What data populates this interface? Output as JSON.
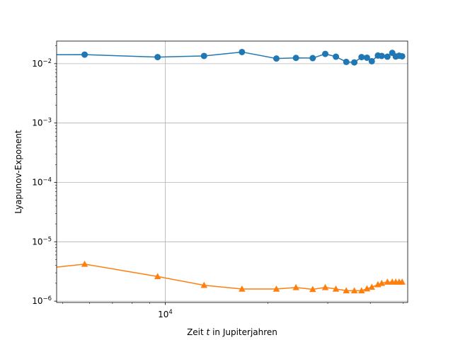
{
  "chart_data": {
    "type": "line",
    "xlabel_prefix": "Zeit ",
    "xlabel_var": "t",
    "xlabel_suffix": " in Jupiterjahren",
    "ylabel": "Lyapunov-Exponent",
    "xscale": "log",
    "yscale": "log",
    "xlim": [
      4800,
      51500
    ],
    "ylim": [
      9.5e-07,
      0.024
    ],
    "grid": true,
    "x_tick_labels": [
      {
        "value": 10000,
        "base": "10",
        "exp": "4"
      }
    ],
    "y_tick_labels": [
      {
        "value": 0.01,
        "base": "10",
        "exp": "−2"
      },
      {
        "value": 0.001,
        "base": "10",
        "exp": "−3"
      },
      {
        "value": 0.0001,
        "base": "10",
        "exp": "−4"
      },
      {
        "value": 1e-05,
        "base": "10",
        "exp": "−5"
      },
      {
        "value": 1e-06,
        "base": "10",
        "exp": "−6"
      }
    ],
    "series": [
      {
        "color": "#1f77b4",
        "marker": "circle",
        "x": [
          4500,
          5800,
          9500,
          13000,
          16800,
          21200,
          24200,
          27100,
          29500,
          31700,
          34000,
          35900,
          37700,
          39100,
          40400,
          42100,
          43200,
          44900,
          46400,
          47500,
          48600,
          49600
        ],
        "y": [
          0.0141,
          0.0142,
          0.0129,
          0.0135,
          0.0157,
          0.0122,
          0.0125,
          0.0124,
          0.0146,
          0.0131,
          0.0107,
          0.0105,
          0.0129,
          0.0126,
          0.011,
          0.0137,
          0.0135,
          0.0131,
          0.0152,
          0.0132,
          0.0136,
          0.0133
        ]
      },
      {
        "color": "#ff7f0e",
        "marker": "triangle",
        "x": [
          4500,
          5800,
          9500,
          13000,
          16800,
          21200,
          24200,
          27100,
          29500,
          31700,
          34000,
          35900,
          37700,
          39100,
          40400,
          42100,
          43200,
          44900,
          46400,
          47500,
          48600,
          49600
        ],
        "y": [
          3.6e-06,
          4.2e-06,
          2.6e-06,
          1.85e-06,
          1.6e-06,
          1.6e-06,
          1.7e-06,
          1.58e-06,
          1.7e-06,
          1.6e-06,
          1.5e-06,
          1.5e-06,
          1.5e-06,
          1.62e-06,
          1.72e-06,
          1.9e-06,
          2e-06,
          2.1e-06,
          2.1e-06,
          2.1e-06,
          2.1e-06,
          2.1e-06
        ]
      }
    ]
  }
}
